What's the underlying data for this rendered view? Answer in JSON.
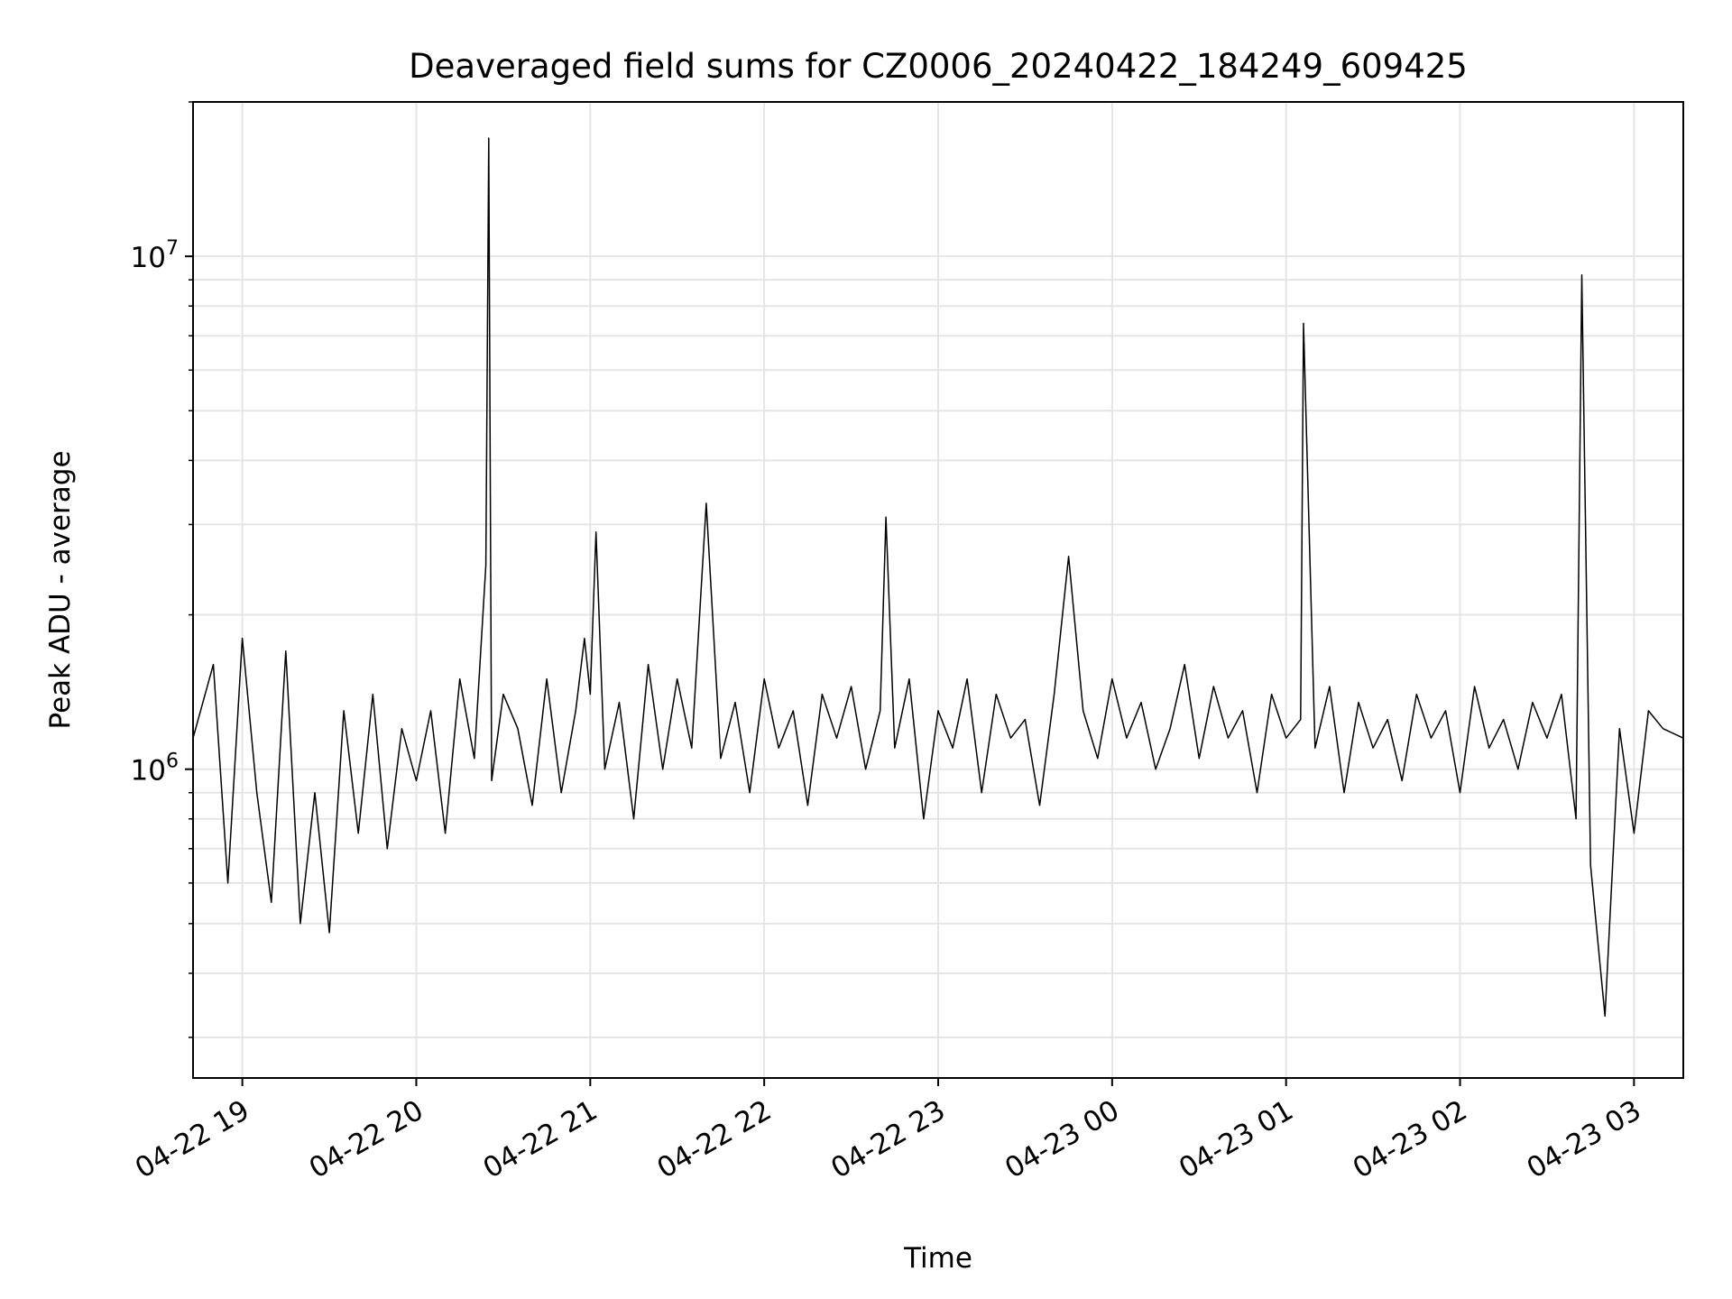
{
  "chart_data": {
    "type": "line",
    "title": "Deaveraged field sums for CZ0006_20240422_184249_609425",
    "xlabel": "Time",
    "ylabel": "Peak ADU - average",
    "x_scale": "time",
    "y_scale": "log",
    "xlim": [
      "2024-04-22 18:43",
      "2024-04-23 03:17"
    ],
    "ylim": [
      250000,
      20000000
    ],
    "x_ticks": [
      "2024-04-22 19:00",
      "2024-04-22 20:00",
      "2024-04-22 21:00",
      "2024-04-22 22:00",
      "2024-04-22 23:00",
      "2024-04-23 00:00",
      "2024-04-23 01:00",
      "2024-04-23 02:00",
      "2024-04-23 03:00"
    ],
    "x_tick_labels": [
      "04-22 19",
      "04-22 20",
      "04-22 21",
      "04-22 22",
      "04-22 23",
      "04-23 00",
      "04-23 01",
      "04-23 02",
      "04-23 03"
    ],
    "y_major_ticks": [
      1000000,
      10000000
    ],
    "y_tick_labels": [
      "10",
      "10"
    ],
    "y_tick_exponents": [
      "6",
      "7"
    ],
    "grid": true,
    "line_color": "#000000",
    "series": [
      {
        "x": [
          "2024-04-22 18:43",
          "2024-04-22 18:50",
          "2024-04-22 18:55",
          "2024-04-22 19:00",
          "2024-04-22 19:05",
          "2024-04-22 19:10",
          "2024-04-22 19:15",
          "2024-04-22 19:20",
          "2024-04-22 19:25",
          "2024-04-22 19:30",
          "2024-04-22 19:35",
          "2024-04-22 19:40",
          "2024-04-22 19:45",
          "2024-04-22 19:50",
          "2024-04-22 19:55",
          "2024-04-22 20:00",
          "2024-04-22 20:05",
          "2024-04-22 20:10",
          "2024-04-22 20:15",
          "2024-04-22 20:20",
          "2024-04-22 20:24",
          "2024-04-22 20:25",
          "2024-04-22 20:26",
          "2024-04-22 20:30",
          "2024-04-22 20:35",
          "2024-04-22 20:40",
          "2024-04-22 20:45",
          "2024-04-22 20:50",
          "2024-04-22 20:55",
          "2024-04-22 20:58",
          "2024-04-22 21:00",
          "2024-04-22 21:02",
          "2024-04-22 21:05",
          "2024-04-22 21:10",
          "2024-04-22 21:15",
          "2024-04-22 21:20",
          "2024-04-22 21:25",
          "2024-04-22 21:30",
          "2024-04-22 21:35",
          "2024-04-22 21:40",
          "2024-04-22 21:45",
          "2024-04-22 21:50",
          "2024-04-22 21:55",
          "2024-04-22 22:00",
          "2024-04-22 22:05",
          "2024-04-22 22:10",
          "2024-04-22 22:15",
          "2024-04-22 22:20",
          "2024-04-22 22:25",
          "2024-04-22 22:30",
          "2024-04-22 22:35",
          "2024-04-22 22:40",
          "2024-04-22 22:42",
          "2024-04-22 22:45",
          "2024-04-22 22:50",
          "2024-04-22 22:55",
          "2024-04-22 23:00",
          "2024-04-22 23:05",
          "2024-04-22 23:10",
          "2024-04-22 23:15",
          "2024-04-22 23:20",
          "2024-04-22 23:25",
          "2024-04-22 23:30",
          "2024-04-22 23:35",
          "2024-04-22 23:40",
          "2024-04-22 23:45",
          "2024-04-22 23:50",
          "2024-04-22 23:55",
          "2024-04-23 00:00",
          "2024-04-23 00:05",
          "2024-04-23 00:10",
          "2024-04-23 00:15",
          "2024-04-23 00:20",
          "2024-04-23 00:25",
          "2024-04-23 00:30",
          "2024-04-23 00:35",
          "2024-04-23 00:40",
          "2024-04-23 00:45",
          "2024-04-23 00:50",
          "2024-04-23 00:55",
          "2024-04-23 01:00",
          "2024-04-23 01:05",
          "2024-04-23 01:06",
          "2024-04-23 01:10",
          "2024-04-23 01:15",
          "2024-04-23 01:20",
          "2024-04-23 01:25",
          "2024-04-23 01:30",
          "2024-04-23 01:35",
          "2024-04-23 01:40",
          "2024-04-23 01:45",
          "2024-04-23 01:50",
          "2024-04-23 01:55",
          "2024-04-23 02:00",
          "2024-04-23 02:05",
          "2024-04-23 02:10",
          "2024-04-23 02:15",
          "2024-04-23 02:20",
          "2024-04-23 02:25",
          "2024-04-23 02:30",
          "2024-04-23 02:35",
          "2024-04-23 02:40",
          "2024-04-23 02:42",
          "2024-04-23 02:45",
          "2024-04-23 02:50",
          "2024-04-23 02:55",
          "2024-04-23 03:00",
          "2024-04-23 03:05",
          "2024-04-23 03:10",
          "2024-04-23 03:17"
        ],
        "values": [
          1150000,
          1600000,
          600000,
          1800000,
          900000,
          550000,
          1700000,
          500000,
          900000,
          480000,
          1300000,
          750000,
          1400000,
          700000,
          1200000,
          950000,
          1300000,
          750000,
          1500000,
          1050000,
          2500000,
          17000000,
          950000,
          1400000,
          1200000,
          850000,
          1500000,
          900000,
          1300000,
          1800000,
          1400000,
          2900000,
          1000000,
          1350000,
          800000,
          1600000,
          1000000,
          1500000,
          1100000,
          3300000,
          1050000,
          1350000,
          900000,
          1500000,
          1100000,
          1300000,
          850000,
          1400000,
          1150000,
          1450000,
          1000000,
          1300000,
          3100000,
          1100000,
          1500000,
          800000,
          1300000,
          1100000,
          1500000,
          900000,
          1400000,
          1150000,
          1250000,
          850000,
          1400000,
          2600000,
          1300000,
          1050000,
          1500000,
          1150000,
          1350000,
          1000000,
          1200000,
          1600000,
          1050000,
          1450000,
          1150000,
          1300000,
          900000,
          1400000,
          1150000,
          1250000,
          7400000,
          1100000,
          1450000,
          900000,
          1350000,
          1100000,
          1250000,
          950000,
          1400000,
          1150000,
          1300000,
          900000,
          1450000,
          1100000,
          1250000,
          1000000,
          1350000,
          1150000,
          1400000,
          800000,
          9200000,
          650000,
          330000,
          1200000,
          750000,
          1300000,
          1200000,
          1150000
        ]
      }
    ]
  }
}
